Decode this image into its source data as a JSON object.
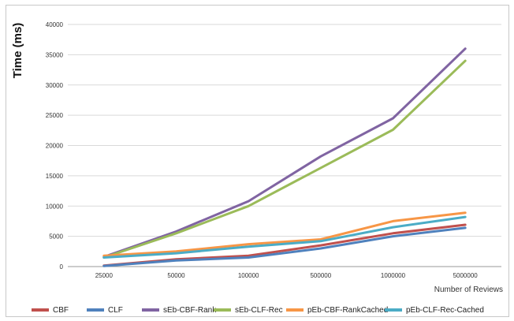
{
  "chart_data": {
    "type": "line",
    "title": "",
    "xlabel": "Number of Reviews",
    "ylabel": "Time (ms)",
    "categories": [
      "25000",
      "50000",
      "100000",
      "500000",
      "1000000",
      "5000000"
    ],
    "yticks": [
      "0",
      "5000",
      "10000",
      "15000",
      "20000",
      "25000",
      "30000",
      "35000",
      "40000"
    ],
    "ylim": [
      0,
      40000
    ],
    "grid": true,
    "legend": "bottom",
    "series": [
      {
        "name": "CBF",
        "color": "#c0504d",
        "values": [
          150,
          1200,
          1800,
          3500,
          5500,
          6900
        ]
      },
      {
        "name": "CLF",
        "color": "#4f81bd",
        "values": [
          100,
          1000,
          1500,
          3000,
          5000,
          6400
        ]
      },
      {
        "name": "sEb-CBF-Rank",
        "color": "#8064a2",
        "values": [
          1600,
          5800,
          10800,
          18200,
          24500,
          36000
        ]
      },
      {
        "name": "sEb-CLF-Rec",
        "color": "#9bbb59",
        "values": [
          1500,
          5500,
          10000,
          16300,
          22600,
          34000
        ]
      },
      {
        "name": "pEb-CBF-RankCached",
        "color": "#f79646",
        "values": [
          1800,
          2500,
          3700,
          4500,
          7500,
          8900
        ]
      },
      {
        "name": "pEb-CLF-Rec-Cached",
        "color": "#4bacc6",
        "values": [
          1500,
          2200,
          3300,
          4200,
          6500,
          8200
        ]
      }
    ]
  }
}
